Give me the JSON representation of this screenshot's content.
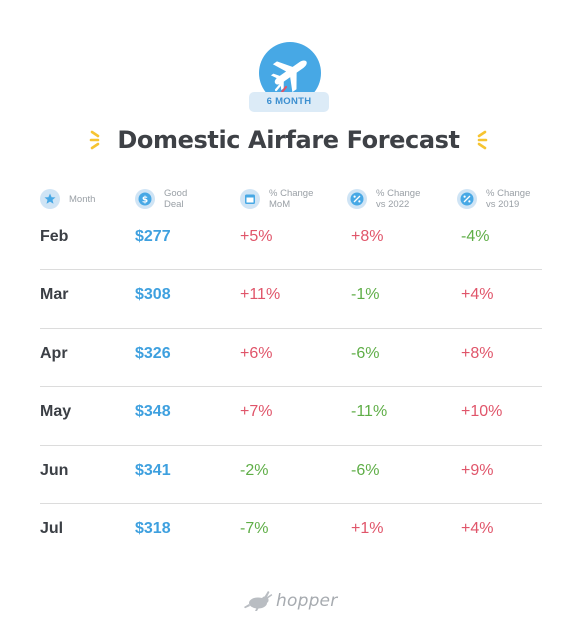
{
  "badge": {
    "label": "6 MONTH",
    "icon": "airplane-icon"
  },
  "title": "Domestic Airfare Forecast",
  "headers": [
    {
      "icon": "star-icon",
      "label": "Month"
    },
    {
      "icon": "dollar-icon",
      "label": "Good Deal"
    },
    {
      "icon": "calendar-icon",
      "label": "% Change MoM"
    },
    {
      "icon": "percent-icon",
      "label": "% Change vs 2022"
    },
    {
      "icon": "percent-icon",
      "label": "% Change vs 2019"
    }
  ],
  "rows": [
    {
      "month": "Feb",
      "deal": "$277",
      "mom": "+5%",
      "vs2022": "+8%",
      "vs2019": "-4%"
    },
    {
      "month": "Mar",
      "deal": "$308",
      "mom": "+11%",
      "vs2022": "-1%",
      "vs2019": "+4%"
    },
    {
      "month": "Apr",
      "deal": "$326",
      "mom": "+6%",
      "vs2022": "-6%",
      "vs2019": "+8%"
    },
    {
      "month": "May",
      "deal": "$348",
      "mom": "+7%",
      "vs2022": "-11%",
      "vs2019": "+10%"
    },
    {
      "month": "Jun",
      "deal": "$341",
      "mom": "-2%",
      "vs2022": "-6%",
      "vs2019": "+9%"
    },
    {
      "month": "Jul",
      "deal": "$318",
      "mom": "-7%",
      "vs2022": "+1%",
      "vs2019": "+4%"
    }
  ],
  "colors": {
    "accent": "#47a8e5",
    "increase": "#e0556a",
    "decrease": "#5fae47",
    "sparkle": "#f6c431"
  },
  "logo": {
    "text": "hopper",
    "icon": "bunny-logo-icon"
  }
}
